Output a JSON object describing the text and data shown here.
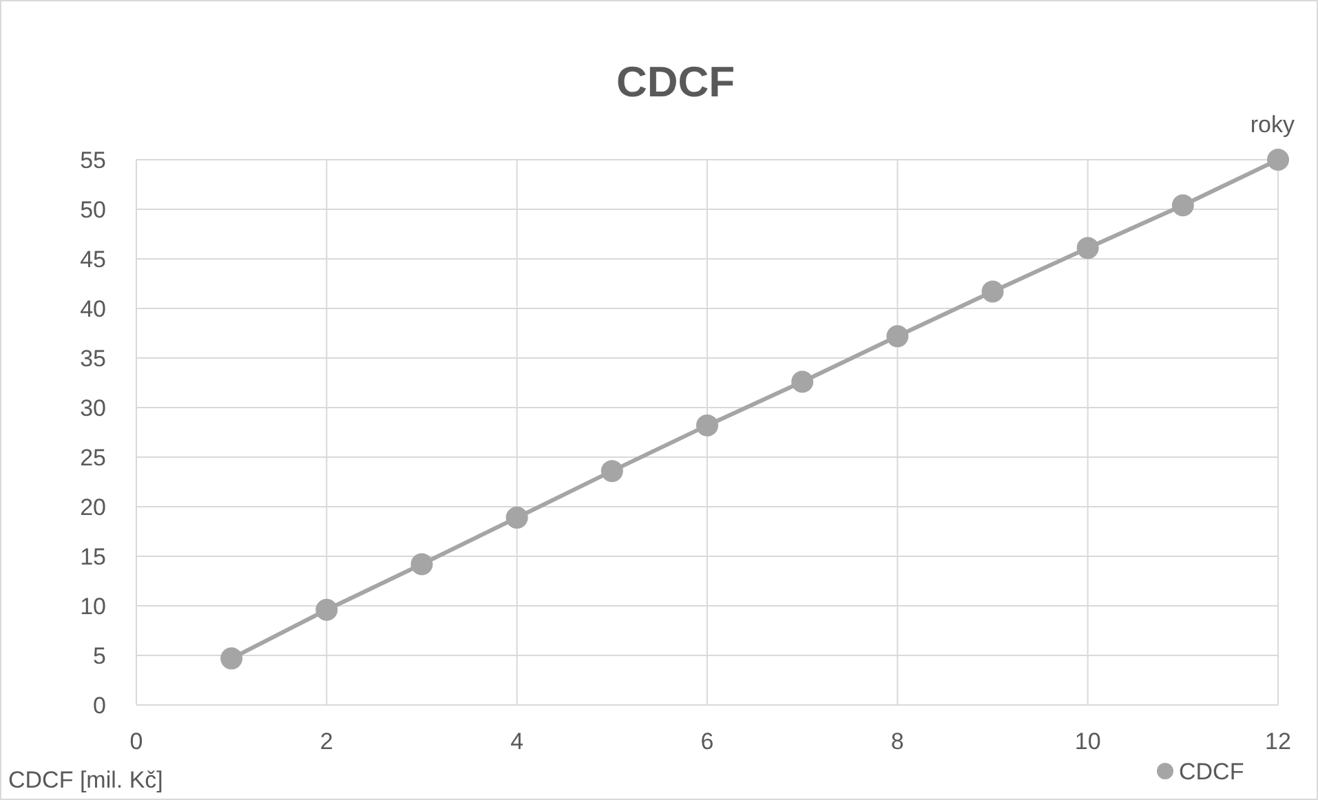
{
  "chart_data": {
    "type": "line",
    "title": "CDCF",
    "xlabel": "roky",
    "ylabel": "CDCF [mil. Kč]",
    "x": [
      1,
      2,
      3,
      4,
      5,
      6,
      7,
      8,
      9,
      10,
      11,
      12
    ],
    "series": [
      {
        "name": "CDCF",
        "color": "#a5a5a5",
        "values": [
          4.7,
          9.6,
          14.2,
          18.9,
          23.6,
          28.2,
          32.6,
          37.2,
          41.7,
          46.1,
          50.4,
          55
        ]
      }
    ],
    "xlim": [
      0,
      12
    ],
    "xticks": [
      0,
      2,
      4,
      6,
      8,
      10,
      12
    ],
    "ylim": [
      0,
      55
    ],
    "yticks": [
      0,
      5,
      10,
      15,
      20,
      25,
      30,
      35,
      40,
      45,
      50,
      55
    ],
    "grid": true,
    "legend": "bottom right",
    "marker": "circle",
    "line_style": "solid"
  }
}
